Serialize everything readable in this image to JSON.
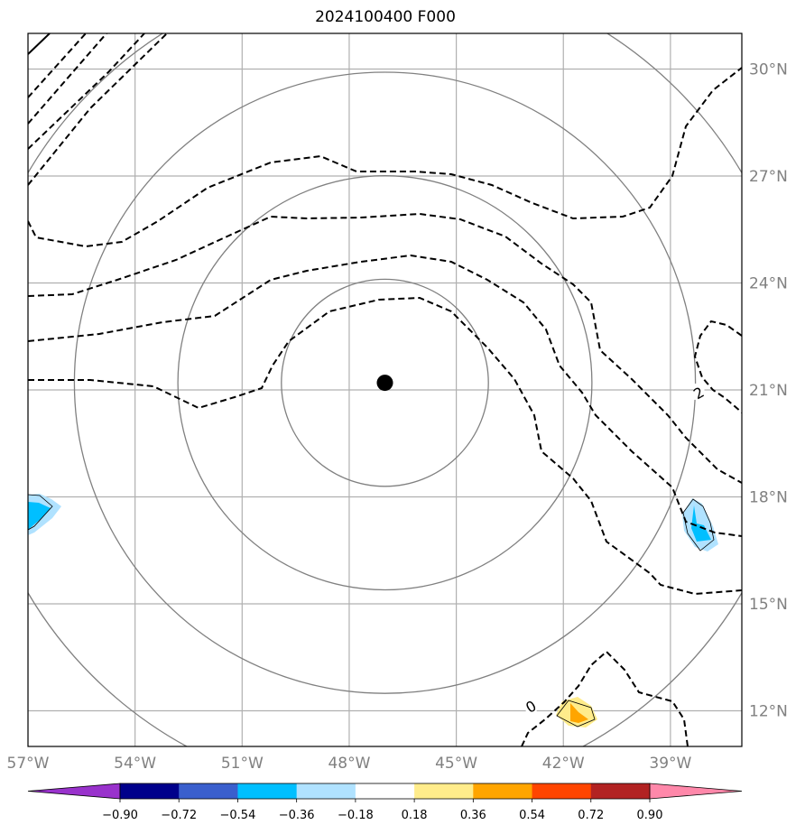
{
  "title": "2024100400 F000",
  "map": {
    "lon_range": [
      -57.0,
      -37.0
    ],
    "lat_range": [
      11.0,
      31.0
    ],
    "gridlines": true,
    "center_marker": {
      "lon": -47.0,
      "lat": 21.2,
      "label": ""
    },
    "range_ring_radii_deg": [
      2.9,
      5.8,
      8.7,
      11.6
    ]
  },
  "lon_ticks": [
    {
      "value": -57,
      "label": "57°W"
    },
    {
      "value": -54,
      "label": "54°W"
    },
    {
      "value": -51,
      "label": "51°W"
    },
    {
      "value": -48,
      "label": "48°W"
    },
    {
      "value": -45,
      "label": "45°W"
    },
    {
      "value": -42,
      "label": "42°W"
    },
    {
      "value": -39,
      "label": "39°W"
    }
  ],
  "lat_ticks": [
    {
      "value": 30,
      "label": "30°N"
    },
    {
      "value": 27,
      "label": "27°N"
    },
    {
      "value": 24,
      "label": "24°N"
    },
    {
      "value": 21,
      "label": "21°N"
    },
    {
      "value": 18,
      "label": "18°N"
    },
    {
      "value": 15,
      "label": "15°N"
    },
    {
      "value": 12,
      "label": "12°N"
    }
  ],
  "contour_labels": [
    {
      "text": "2",
      "lon": -38.2,
      "lat": 20.9
    },
    {
      "text": "0",
      "lon": -42.9,
      "lat": 12.1
    }
  ],
  "colorbar": {
    "tick_labels": [
      "−0.90",
      "−0.72",
      "−0.54",
      "−0.36",
      "−0.18",
      "0.18",
      "0.36",
      "0.54",
      "0.72",
      "0.90"
    ],
    "colors": [
      "#9932cc",
      "#00008b",
      "#3a5fcd",
      "#00bfff",
      "#b0e2ff",
      "#ffffff",
      "#ffec8b",
      "#ffa500",
      "#ff4500",
      "#b22222",
      "#ff88aa"
    ],
    "extend": "both"
  },
  "colors": {
    "gridline": "#b0b0b0",
    "range_ring": "#808080",
    "contour": "#000000"
  }
}
